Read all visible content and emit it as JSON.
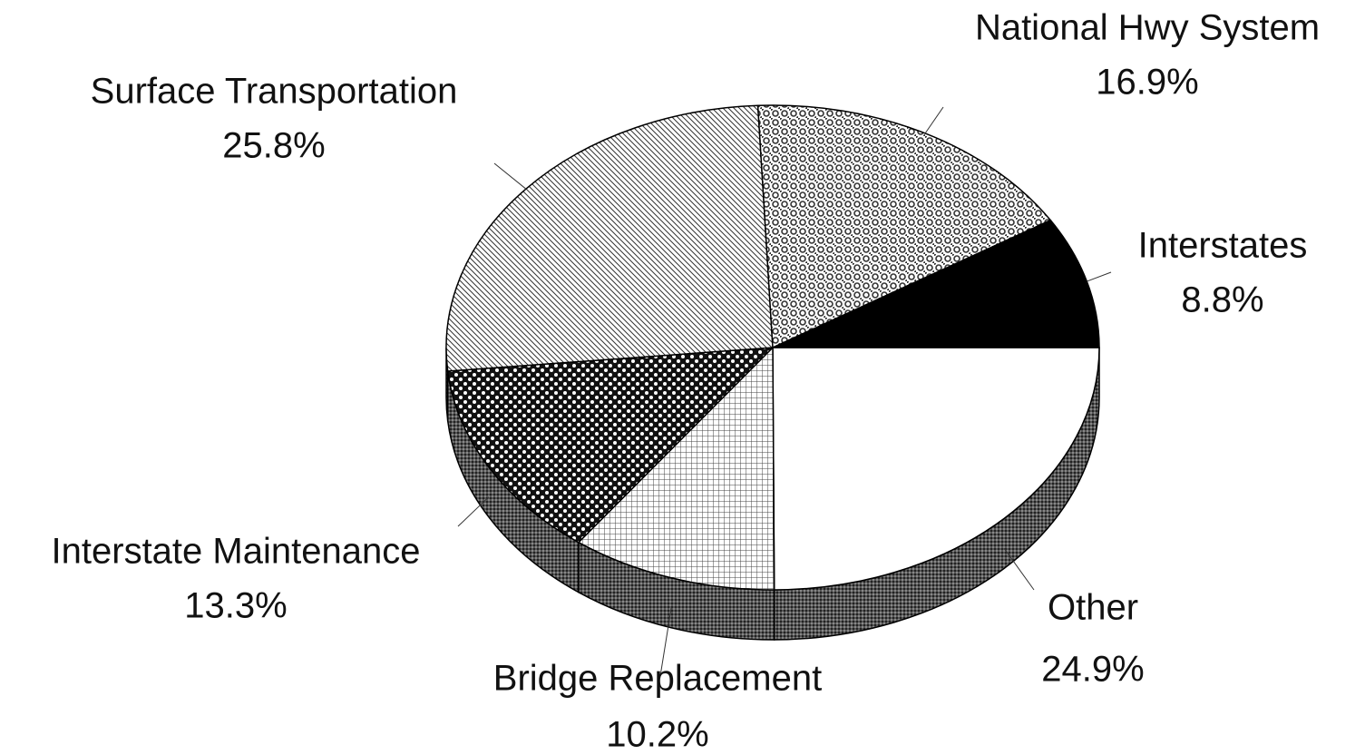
{
  "chart_data": {
    "type": "pie",
    "categories": [
      "Other",
      "Bridge Replacement",
      "Interstate Maintenance",
      "Surface Transportation",
      "National Hwy System",
      "Interstates"
    ],
    "values": [
      24.9,
      10.2,
      13.3,
      25.8,
      16.9,
      8.8
    ],
    "value_labels": [
      "24.9%",
      "10.2%",
      "13.3%",
      "25.8%",
      "16.9%",
      "8.8%"
    ],
    "three_d": true
  }
}
